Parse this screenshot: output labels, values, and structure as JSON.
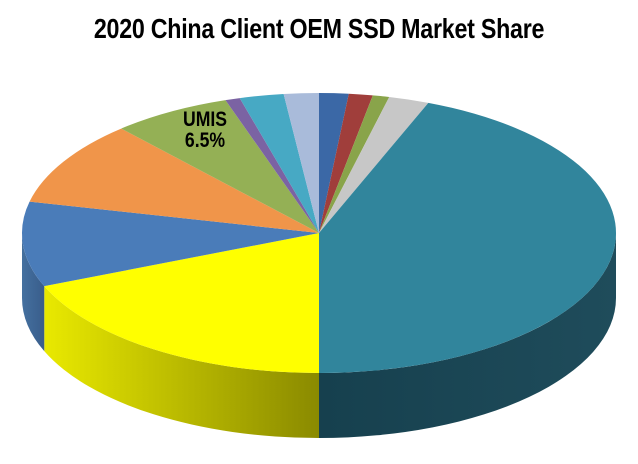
{
  "chart_data": {
    "type": "pie",
    "style": "3d",
    "title": "2020 China Client OEM SSD Market Share",
    "start_angle_deg": 0,
    "direction": "clockwise",
    "legend": "none",
    "values_unit": "percent",
    "slices": [
      {
        "label": "",
        "color_name": "dark-steel-blue",
        "value": 1.6,
        "color": "#3B68A6"
      },
      {
        "label": "",
        "color_name": "brick-red",
        "value": 1.3,
        "color": "#A03E3B"
      },
      {
        "label": "",
        "color_name": "olive-green",
        "value": 0.9,
        "color": "#89A44A"
      },
      {
        "label": "",
        "color_name": "silver-gray",
        "value": 2.2,
        "color": "#C7C7C7"
      },
      {
        "label": "",
        "color_name": "teal",
        "value": 44.0,
        "color": "#31859C",
        "wall": {
          "from": "#16404E",
          "to": "#1F4C5B"
        }
      },
      {
        "label": "",
        "color_name": "yellow",
        "value": 18.8,
        "color": "#FFFF00",
        "wall": {
          "from": "#E9E900",
          "to": "#8A8A00"
        }
      },
      {
        "label": "",
        "color_name": "steel-blue",
        "value": 9.8,
        "color": "#4A7CB9",
        "wall": {
          "from": "#44709F",
          "to": "#395D8B"
        }
      },
      {
        "label": "",
        "color_name": "orange",
        "value": 9.8,
        "color": "#F0954A"
      },
      {
        "label": "UMIS",
        "color_name": "green",
        "value": 6.5,
        "color": "#94B055"
      },
      {
        "label": "",
        "color_name": "purple",
        "value": 0.8,
        "color": "#7B63A3"
      },
      {
        "label": "",
        "color_name": "cyan",
        "value": 2.4,
        "color": "#47A9C4"
      },
      {
        "label": "",
        "color_name": "periwinkle",
        "value": 1.9,
        "color": "#A9BBDA"
      }
    ],
    "visible_labels": [
      {
        "slice_label": "UMIS",
        "line1": "UMIS",
        "line2": "6.5%"
      }
    ]
  },
  "colors": {
    "background": "#FFFFFF",
    "title_text": "#000000",
    "label_text": "#000000"
  }
}
